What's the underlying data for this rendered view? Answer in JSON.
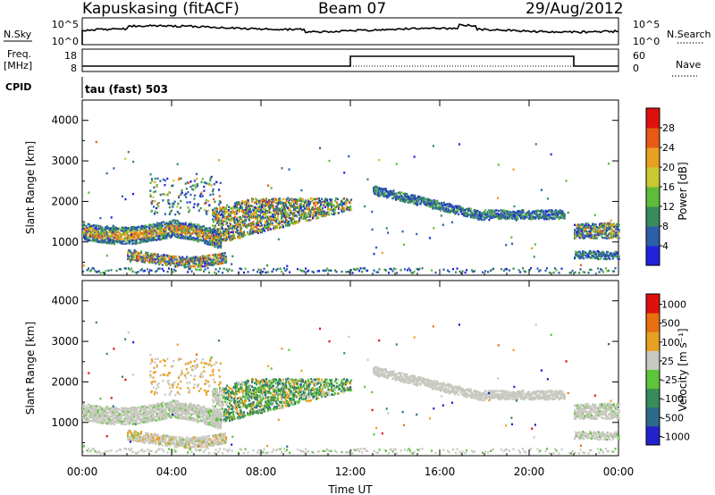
{
  "header": {
    "station": "Kapuskasing (fitACF)",
    "beam": "Beam 07",
    "date": "29/Aug/2012"
  },
  "labels": {
    "nsky": "N.Sky",
    "freq": "Freq.",
    "freq_unit": "[MHz]",
    "cpid": "CPID",
    "nsearch": "N.Search",
    "nave": "Nave",
    "tau": "tau (fast) 503",
    "nsky_ticks": [
      "10^5",
      "10^0"
    ],
    "freq_ticks": [
      "18",
      "8"
    ],
    "nave_ticks": [
      "60",
      "0"
    ]
  },
  "chart_data": {
    "type": "heatmap",
    "xlabel": "Time UT",
    "x_ticks": [
      "00:00",
      "04:00",
      "08:00",
      "12:00",
      "16:00",
      "20:00",
      "00:00"
    ],
    "xlim_hours": [
      0,
      24
    ],
    "panels": [
      {
        "name": "power",
        "ylabel": "Slant Range [km]",
        "y_ticks": [
          1000,
          2000,
          3000,
          4000
        ],
        "ylim": [
          180,
          4500
        ],
        "colorbar_label": "Power [dB]",
        "colorbar_ticks": [
          "4",
          "8",
          "12",
          "16",
          "20",
          "24",
          "28"
        ],
        "colorbar_colors": [
          "#2222dd",
          "#2c5fa8",
          "#3a8b5a",
          "#5ebc3a",
          "#c8c832",
          "#e8a022",
          "#e85a14",
          "#e01010"
        ]
      },
      {
        "name": "velocity",
        "ylabel": "Slant Range [km]",
        "y_ticks": [
          1000,
          2000,
          3000,
          4000
        ],
        "ylim": [
          180,
          4500
        ],
        "colorbar_label": "Velocity [m s⁻¹]",
        "colorbar_ticks": [
          "1000",
          "500",
          "100",
          "25",
          "-25",
          "-100",
          "-500",
          "-1000"
        ],
        "colorbar_colors": [
          "#2222cc",
          "#2c6a8c",
          "#3a8b5a",
          "#5ec43a",
          "#c8c8c0",
          "#e8a022",
          "#e87010",
          "#e01010"
        ]
      }
    ],
    "frequency_trace": {
      "segments": [
        {
          "from_hours": 0,
          "to_hours": 12,
          "level": "low"
        },
        {
          "from_hours": 12,
          "to_hours": 22,
          "level": "high"
        },
        {
          "from_hours": 22,
          "to_hours": 24,
          "level": "low"
        }
      ]
    }
  }
}
